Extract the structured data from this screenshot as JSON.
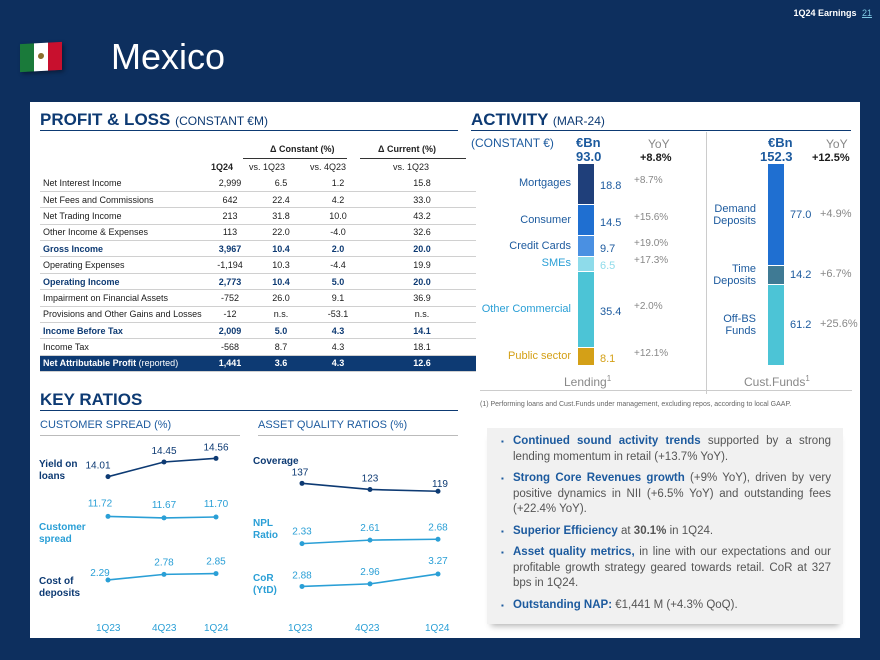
{
  "header": {
    "section": "1Q24 Earnings",
    "page": "21",
    "title": "Mexico"
  },
  "pl": {
    "title": "PROFIT & LOSS",
    "subtitle": "(CONSTANT €M)",
    "group_constant": "Δ Constant (%)",
    "group_current": "Δ Current (%)",
    "cols": [
      "1Q24",
      "vs. 1Q23",
      "vs. 4Q23",
      "vs. 1Q23"
    ],
    "rows": [
      {
        "label": "Net Interest Income",
        "v": [
          "2,999",
          "6.5",
          "1.2",
          "15.8"
        ]
      },
      {
        "label": "Net Fees and Commissions",
        "v": [
          "642",
          "22.4",
          "4.2",
          "33.0"
        ]
      },
      {
        "label": "Net Trading Income",
        "v": [
          "213",
          "31.8",
          "10.0",
          "43.2"
        ]
      },
      {
        "label": "Other Income & Expenses",
        "v": [
          "113",
          "22.0",
          "-4.0",
          "32.6"
        ]
      },
      {
        "label": "Gross Income",
        "v": [
          "3,967",
          "10.4",
          "2.0",
          "20.0"
        ],
        "hl": true
      },
      {
        "label": "Operating Expenses",
        "v": [
          "-1,194",
          "10.3",
          "-4.4",
          "19.9"
        ]
      },
      {
        "label": "Operating Income",
        "v": [
          "2,773",
          "10.4",
          "5.0",
          "20.0"
        ],
        "hl": true
      },
      {
        "label": "Impairment on Financial Assets",
        "v": [
          "-752",
          "26.0",
          "9.1",
          "36.9"
        ]
      },
      {
        "label": "Provisions and Other Gains and Losses",
        "v": [
          "-12",
          "n.s.",
          "-53.1",
          "n.s."
        ]
      },
      {
        "label": "Income Before Tax",
        "v": [
          "2,009",
          "5.0",
          "4.3",
          "14.1"
        ],
        "hl": true
      },
      {
        "label": "Income Tax",
        "v": [
          "-568",
          "8.7",
          "4.3",
          "18.1"
        ]
      }
    ],
    "last": {
      "label": "Net Attributable Profit",
      "suffix": "(reported)",
      "v": [
        "1,441",
        "3.6",
        "4.3",
        "12.6"
      ]
    }
  },
  "ratios": {
    "title": "KEY RATIOS",
    "spread_title": "CUSTOMER SPREAD (%)",
    "quality_title": "ASSET QUALITY RATIOS (%)",
    "periods": [
      "1Q23",
      "4Q23",
      "1Q24"
    ],
    "spread_series": [
      {
        "name": "Yield on loans",
        "values": [
          14.01,
          14.45,
          14.56
        ],
        "labels": [
          "14.01",
          "14.45",
          "14.56"
        ]
      },
      {
        "name": "Customer spread",
        "values": [
          11.72,
          11.67,
          11.7
        ],
        "labels": [
          "11.72",
          "11.67",
          "11.70"
        ]
      },
      {
        "name": "Cost of deposits",
        "values": [
          2.29,
          2.78,
          2.85
        ],
        "labels": [
          "2.29",
          "2.78",
          "2.85"
        ]
      }
    ],
    "quality_series": [
      {
        "name": "Coverage",
        "values": [
          137,
          123,
          119
        ],
        "labels": [
          "137",
          "123",
          "119"
        ]
      },
      {
        "name": "NPL Ratio",
        "values": [
          2.33,
          2.61,
          2.68
        ],
        "labels": [
          "2.33",
          "2.61",
          "2.68"
        ]
      },
      {
        "name": "CoR (YtD)",
        "values": [
          2.88,
          2.96,
          3.27
        ],
        "labels": [
          "2.88",
          "2.96",
          "3.27"
        ]
      }
    ],
    "names": {
      "yield1": "Yield on",
      "yield2": "loans",
      "spread1": "Customer",
      "spread2": "spread",
      "cost1": "Cost of",
      "cost2": "deposits",
      "cov": "Coverage",
      "npl1": "NPL",
      "npl2": "Ratio",
      "cor1": "CoR",
      "cor2": "(YtD)"
    }
  },
  "activity": {
    "title": "ACTIVITY",
    "subtitle": "(MAR-24)",
    "constant": "(CONSTANT €)",
    "unit": "€Bn",
    "yoy_label": "YoY",
    "lending": {
      "total": "93.0",
      "total_yoy": "+8.8%",
      "axis": "Lending",
      "sup": "1",
      "items": [
        {
          "name": "Mortgages",
          "value": 18.8,
          "label": "18.8",
          "yoy": "+8.7%"
        },
        {
          "name": "Consumer",
          "value": 14.5,
          "label": "14.5",
          "yoy": "+15.6%"
        },
        {
          "name": "Credit Cards",
          "value": 9.7,
          "label": "9.7",
          "yoy": "+19.0%"
        },
        {
          "name": "SMEs",
          "value": 6.5,
          "label": "6.5",
          "yoy": "+17.3%"
        },
        {
          "name": "Other Commercial",
          "value": 35.4,
          "label": "35.4",
          "yoy": "+2.0%"
        },
        {
          "name": "Public sector",
          "value": 8.1,
          "label": "8.1",
          "yoy": "+12.1%"
        }
      ]
    },
    "funds": {
      "total": "152.3",
      "total_yoy": "+12.5%",
      "axis": "Cust.Funds",
      "sup": "1",
      "items": [
        {
          "name1": "Demand",
          "name2": "Deposits",
          "value": 77.0,
          "label": "77.0",
          "yoy": "+4.9%"
        },
        {
          "name1": "Time",
          "name2": "Deposits",
          "value": 14.2,
          "label": "14.2",
          "yoy": "+6.7%"
        },
        {
          "name1": "Off-BS",
          "name2": "Funds",
          "value": 61.2,
          "label": "61.2",
          "yoy": "+25.6%"
        }
      ]
    },
    "colors": {
      "mortgages": "#1f3f7a",
      "consumer": "#1f6fd1",
      "cards": "#4a90e2",
      "smes": "#8edbea",
      "other": "#4cc4d6",
      "public": "#d4a017",
      "demand": "#1f6fd1",
      "time": "#3f7a94",
      "offbs": "#4cc4d6"
    },
    "footnote": "(1) Performing loans and Cust.Funds under management, excluding repos, according to local GAAP."
  },
  "bullets": [
    {
      "b": "Continued sound activity trends",
      "t": " supported by a strong lending momentum in retail (+13.7% YoY)."
    },
    {
      "b": "Strong Core Revenues growth",
      "t": " (+9% YoY), driven by very positive dynamics in NII (+6.5% YoY) and outstanding fees (+22.4% YoY)."
    },
    {
      "b": "Superior Efficiency",
      "t": " at ",
      "b2": "30.1%",
      "t2": " in 1Q24."
    },
    {
      "b": "Asset quality metrics,",
      "t": " in line with our expectations and our profitable growth strategy geared towards retail. CoR at 327 bps in 1Q24."
    },
    {
      "b": "Outstanding NAP:",
      "t": " €1,441 M (+4.3% QoQ)."
    }
  ]
}
